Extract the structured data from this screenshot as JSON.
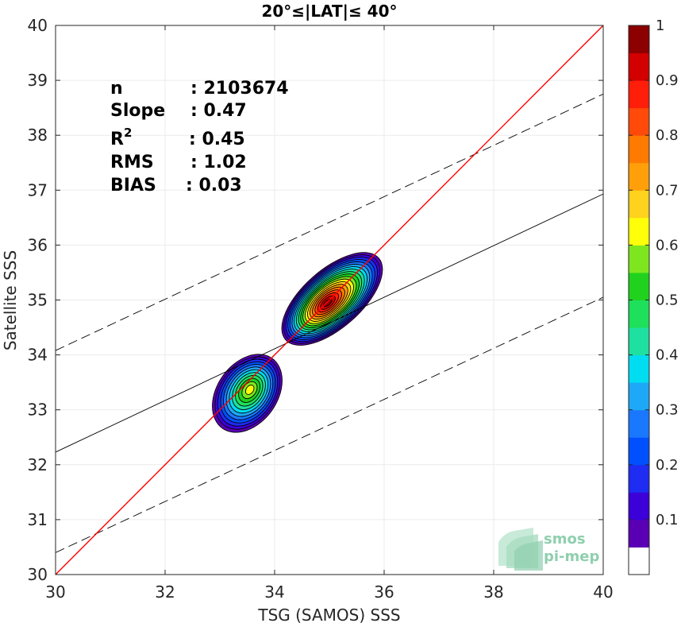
{
  "chart_data": {
    "type": "scatter",
    "title": "20°≤|LAT|≤ 40°",
    "xlabel": "TSG (SAMOS) SSS",
    "ylabel": "Satellite SSS",
    "xlim": [
      30,
      40
    ],
    "ylim": [
      30,
      40
    ],
    "xticks": [
      "30",
      "32",
      "34",
      "36",
      "38",
      "40"
    ],
    "yticks": [
      "30",
      "31",
      "32",
      "33",
      "34",
      "35",
      "36",
      "37",
      "38",
      "39",
      "40"
    ],
    "grid": true,
    "stats": [
      {
        "label": "n",
        "value": ": 2103674"
      },
      {
        "label": "Slope",
        "value": ": 0.47"
      },
      {
        "label": "R",
        "sup": "2",
        "value": ": 0.45"
      },
      {
        "label": "RMS",
        "value": ": 1.02"
      },
      {
        "label": "BIAS",
        "value": ": 0.03"
      }
    ],
    "lines": {
      "one_to_one": {
        "x": [
          30,
          40
        ],
        "y": [
          30,
          40
        ],
        "color": "#ff0000"
      },
      "regression": {
        "x": [
          30,
          40
        ],
        "y": [
          32.23,
          36.93
        ],
        "color": "#000000"
      },
      "upper_bound": {
        "x": [
          30,
          40
        ],
        "y": [
          34.08,
          38.75
        ],
        "color": "#000000",
        "style": "dashed"
      },
      "lower_bound": {
        "x": [
          30,
          40
        ],
        "y": [
          30.4,
          35.05
        ],
        "color": "#000000",
        "style": "dashed"
      }
    },
    "density_peaks": [
      {
        "x": 35.05,
        "y": 35.02,
        "level": 1.0
      },
      {
        "x": 33.5,
        "y": 33.3,
        "level": 0.62
      }
    ],
    "colorbar": {
      "ticks": [
        "0.1",
        "0.2",
        "0.3",
        "0.4",
        "0.5",
        "0.6",
        "0.7",
        "0.8",
        "0.9",
        "1"
      ],
      "colors": [
        "#ffffff",
        "#5a00b4",
        "#3c00d8",
        "#1f2cf2",
        "#0050ff",
        "#1a78ff",
        "#1ea8f8",
        "#00dcf0",
        "#1ee0a0",
        "#1ee05a",
        "#20d21e",
        "#7ee61e",
        "#ffff0a",
        "#ffd21e",
        "#ffa00a",
        "#ff7a00",
        "#ff4a0a",
        "#ff1e0a",
        "#d20000",
        "#8c0000"
      ]
    },
    "watermark": [
      "smos",
      "pi-mep"
    ]
  }
}
